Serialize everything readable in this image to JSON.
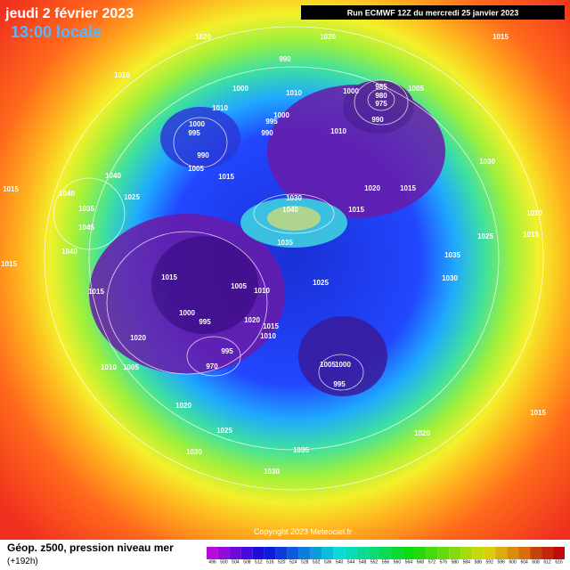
{
  "header": {
    "date": "jeudi 2 février 2023",
    "time": "13:00 locale",
    "run": "Run ECMWF 12Z du mercredi 25 janvier 2023"
  },
  "footer": {
    "title": "Géop. z500, pression niveau mer",
    "lead": "(+192h)",
    "copyright": "Copyright 2023 Meteociel.fr"
  },
  "colorbar": {
    "labels": [
      496,
      500,
      504,
      508,
      512,
      516,
      520,
      524,
      528,
      532,
      536,
      540,
      544,
      548,
      552,
      556,
      560,
      564,
      568,
      572,
      576,
      580,
      584,
      588,
      592,
      596,
      600,
      604,
      608,
      612,
      616
    ]
  },
  "pressure_labels": [
    1020,
    1020,
    1015,
    1010,
    990,
    1000,
    1010,
    985,
    1005,
    1000,
    980,
    975,
    990,
    1010,
    1000,
    995,
    990,
    1005,
    995,
    1000,
    990,
    1010,
    1030,
    1015,
    1040,
    1040,
    1025,
    1035,
    1045,
    1015,
    1020,
    1015,
    1030,
    1040,
    1015,
    1010,
    1025,
    1035,
    1015,
    1015,
    1040,
    1035,
    1015,
    1005,
    1010,
    1025,
    1030,
    1015,
    1000,
    995,
    1020,
    1015,
    1010,
    1020,
    1010,
    1005,
    970,
    995,
    1005,
    1000,
    995,
    1020,
    1015,
    1025,
    1020,
    1030,
    1035,
    1030
  ]
}
